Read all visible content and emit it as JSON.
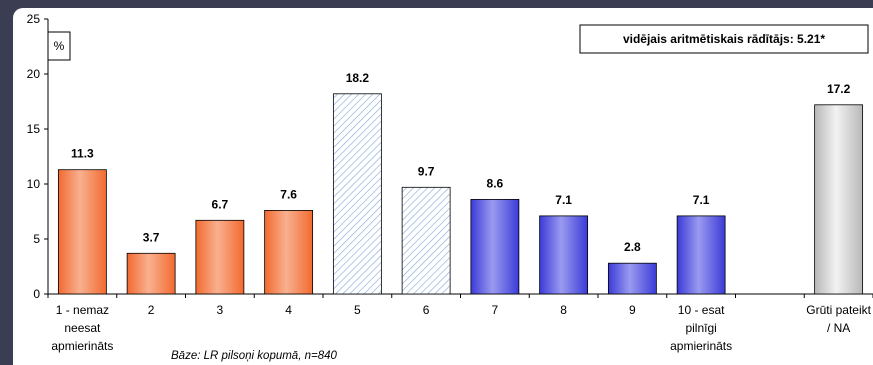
{
  "chart_data": {
    "type": "bar",
    "categories": [
      [
        "1 - nemaz",
        "neesat",
        "apmierināts"
      ],
      [
        "2"
      ],
      [
        "3"
      ],
      [
        "4"
      ],
      [
        "5"
      ],
      [
        "6"
      ],
      [
        "7"
      ],
      [
        "8"
      ],
      [
        "9"
      ],
      [
        "10 - esat",
        "pilnīgi",
        "apmierināts"
      ],
      [
        ""
      ],
      [
        "Grūti pateikt",
        "/ NA"
      ]
    ],
    "values": [
      11.3,
      3.7,
      6.7,
      7.6,
      18.2,
      9.7,
      8.6,
      7.1,
      2.8,
      7.1,
      null,
      17.2
    ],
    "value_labels": [
      "11.3",
      "3.7",
      "6.7",
      "7.6",
      "18.2",
      "9.7",
      "8.6",
      "7.1",
      "2.8",
      "7.1",
      "",
      "17.2"
    ],
    "bar_styles": [
      "orange",
      "orange",
      "orange",
      "orange",
      "hatch",
      "hatch",
      "blue",
      "blue",
      "blue",
      "blue",
      "none",
      "grey"
    ],
    "ylim": [
      0,
      25
    ],
    "yticks": [
      "0",
      "5",
      "10",
      "15",
      "20",
      "25"
    ],
    "ytick_values": [
      0,
      5,
      10,
      15,
      20,
      25
    ],
    "ylabel": "%",
    "annotation": "vidējais aritmētiskais rādītājs: 5.21*",
    "footnote": "Bāze: LR pilsoņi kopumā, n=840",
    "grid": false,
    "colors": {
      "orange": "#f26a30",
      "orange_light": "#f9b08f",
      "blue": "#3b3bd8",
      "blue_light": "#9a9af0",
      "hatch": "#7fa8d8",
      "grey": "#b8b8b8",
      "grey_light": "#f2f2f2"
    }
  }
}
